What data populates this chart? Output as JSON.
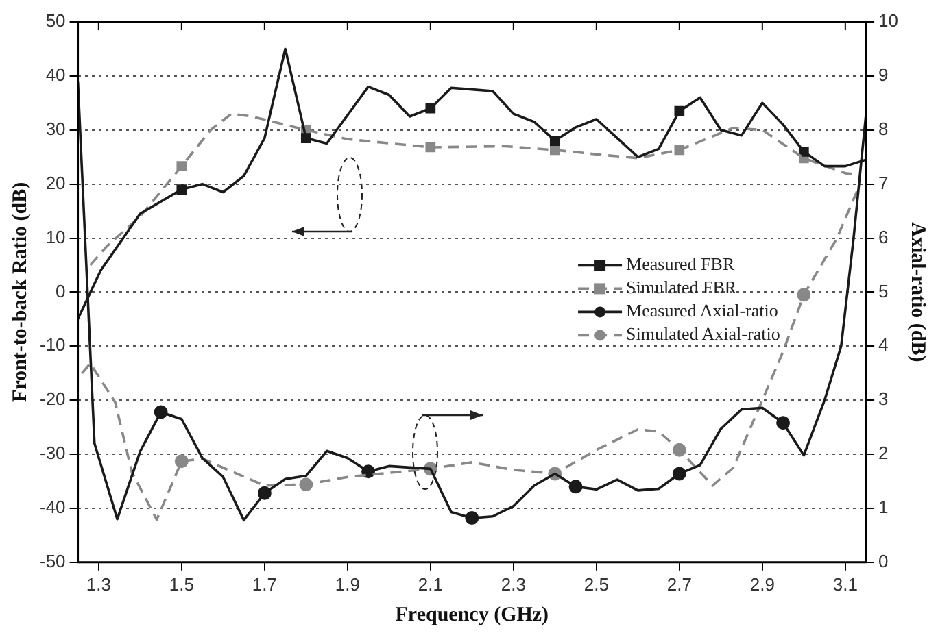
{
  "chart_data": {
    "type": "line",
    "xlabel": "Frequency (GHz)",
    "ylabel": "Front-to-back Ratio (dB)",
    "y2label": "Axial-ratio (dB)",
    "xlim": [
      1.25,
      3.15
    ],
    "xticks": [
      1.3,
      1.5,
      1.7,
      1.9,
      2.1,
      2.3,
      2.5,
      2.7,
      2.9,
      3.1
    ],
    "ylim": [
      -50,
      50
    ],
    "yticks": [
      -50,
      -40,
      -30,
      -20,
      -10,
      0,
      10,
      20,
      30,
      40,
      50
    ],
    "y2lim": [
      0,
      10
    ],
    "y2ticks": [
      0,
      1,
      2,
      3,
      4,
      5,
      6,
      7,
      8,
      9,
      10
    ],
    "grid": "y",
    "legend": "right",
    "series": [
      {
        "name": "Measured FBR",
        "color": "#1a1a1a",
        "line_style": "solid",
        "axis": "y",
        "x": [
          1.25,
          1.305,
          1.4,
          1.5,
          1.55,
          1.6,
          1.65,
          1.7,
          1.75,
          1.8,
          1.85,
          1.95,
          2.0,
          2.05,
          2.1,
          2.15,
          2.2,
          2.25,
          2.3,
          2.35,
          2.4,
          2.45,
          2.5,
          2.6,
          2.65,
          2.7,
          2.75,
          2.8,
          2.85,
          2.9,
          2.95,
          3.0,
          3.05,
          3.1,
          3.15
        ],
        "values": [
          -5,
          4,
          14.5,
          19,
          20,
          18.5,
          21.5,
          28.5,
          45,
          28.5,
          27.5,
          38,
          36.5,
          32.5,
          34,
          37.8,
          37.5,
          37.2,
          33,
          31.5,
          28,
          30.5,
          32,
          25,
          26.5,
          33.5,
          36,
          30,
          29,
          35,
          31,
          26,
          23.3,
          23.3,
          24.5
        ]
      },
      {
        "name": "Simulated FBR",
        "color": "#888888",
        "line_style": "dashed",
        "axis": "y",
        "x": [
          1.28,
          1.32,
          1.4,
          1.5,
          1.57,
          1.62,
          1.67,
          1.8,
          1.9,
          2.1,
          2.28,
          2.4,
          2.5,
          2.6,
          2.7,
          2.83,
          2.9,
          3.0,
          3.1,
          3.13
        ],
        "values": [
          5,
          8.5,
          14,
          23.3,
          30,
          33,
          32.5,
          30,
          28.3,
          26.8,
          27,
          26.3,
          25.5,
          24.8,
          26.3,
          30.4,
          30,
          24.8,
          22,
          21.8
        ]
      },
      {
        "name": "Measured Axial-ratio",
        "color": "#1a1a1a",
        "line_style": "solid",
        "axis": "y2",
        "x": [
          1.25,
          1.29,
          1.345,
          1.4,
          1.45,
          1.5,
          1.55,
          1.6,
          1.65,
          1.7,
          1.75,
          1.8,
          1.85,
          1.9,
          1.95,
          2.0,
          2.1,
          2.15,
          2.2,
          2.25,
          2.3,
          2.35,
          2.4,
          2.45,
          2.5,
          2.55,
          2.6,
          2.65,
          2.7,
          2.75,
          2.8,
          2.85,
          2.9,
          2.95,
          3.0,
          3.05,
          3.09,
          3.12,
          3.15
        ],
        "values": [
          8.9,
          2.2,
          0.8,
          2.05,
          2.78,
          2.65,
          1.93,
          1.58,
          0.78,
          1.28,
          1.54,
          1.6,
          2.06,
          1.93,
          1.68,
          1.78,
          1.73,
          0.93,
          0.82,
          0.85,
          1.04,
          1.42,
          1.64,
          1.4,
          1.35,
          1.53,
          1.33,
          1.36,
          1.64,
          1.8,
          2.47,
          2.83,
          2.86,
          2.58,
          1.98,
          3.0,
          4.0,
          6.0,
          8.3
        ]
      },
      {
        "name": "Simulated Axial-ratio",
        "color": "#888888",
        "line_style": "dashed",
        "axis": "y2",
        "x": [
          1.26,
          1.28,
          1.34,
          1.38,
          1.44,
          1.5,
          1.55,
          1.6,
          1.7,
          1.8,
          1.9,
          2.1,
          2.2,
          2.3,
          2.4,
          2.5,
          2.6,
          2.65,
          2.7,
          2.78,
          2.83,
          2.9,
          2.95,
          3.0,
          3.08,
          3.13
        ],
        "values": [
          3.5,
          3.68,
          2.96,
          1.67,
          0.79,
          1.87,
          1.92,
          1.75,
          1.42,
          1.44,
          1.58,
          1.73,
          1.85,
          1.71,
          1.64,
          2.08,
          2.46,
          2.42,
          2.08,
          1.42,
          1.75,
          3.0,
          3.9,
          4.95,
          6.0,
          6.9
        ]
      },
      {
        "type": "scatter",
        "color": "#1a1a1a",
        "marker": "square",
        "axis": "y",
        "x": [
          1.5,
          1.8,
          2.1,
          2.4,
          2.7,
          3.0
        ],
        "values": [
          19,
          28.5,
          34,
          28,
          33.5,
          26
        ]
      },
      {
        "type": "scatter",
        "color": "#888888",
        "marker": "square",
        "axis": "y",
        "x": [
          1.5,
          1.8,
          2.1,
          2.4,
          2.7,
          3.0
        ],
        "values": [
          23.3,
          30,
          26.8,
          26.3,
          26.3,
          24.8
        ]
      },
      {
        "type": "scatter",
        "color": "#1a1a1a",
        "marker": "circle",
        "axis": "y2",
        "x": [
          1.45,
          1.7,
          1.95,
          2.2,
          2.45,
          2.7,
          2.95
        ],
        "values": [
          2.78,
          1.28,
          1.68,
          0.82,
          1.4,
          1.64,
          2.58
        ]
      },
      {
        "type": "scatter",
        "color": "#888888",
        "marker": "circle",
        "axis": "y2",
        "x": [
          1.5,
          1.8,
          2.1,
          2.4,
          2.7,
          3.0
        ],
        "values": [
          1.87,
          1.44,
          1.73,
          1.64,
          2.08,
          4.95
        ]
      }
    ]
  }
}
